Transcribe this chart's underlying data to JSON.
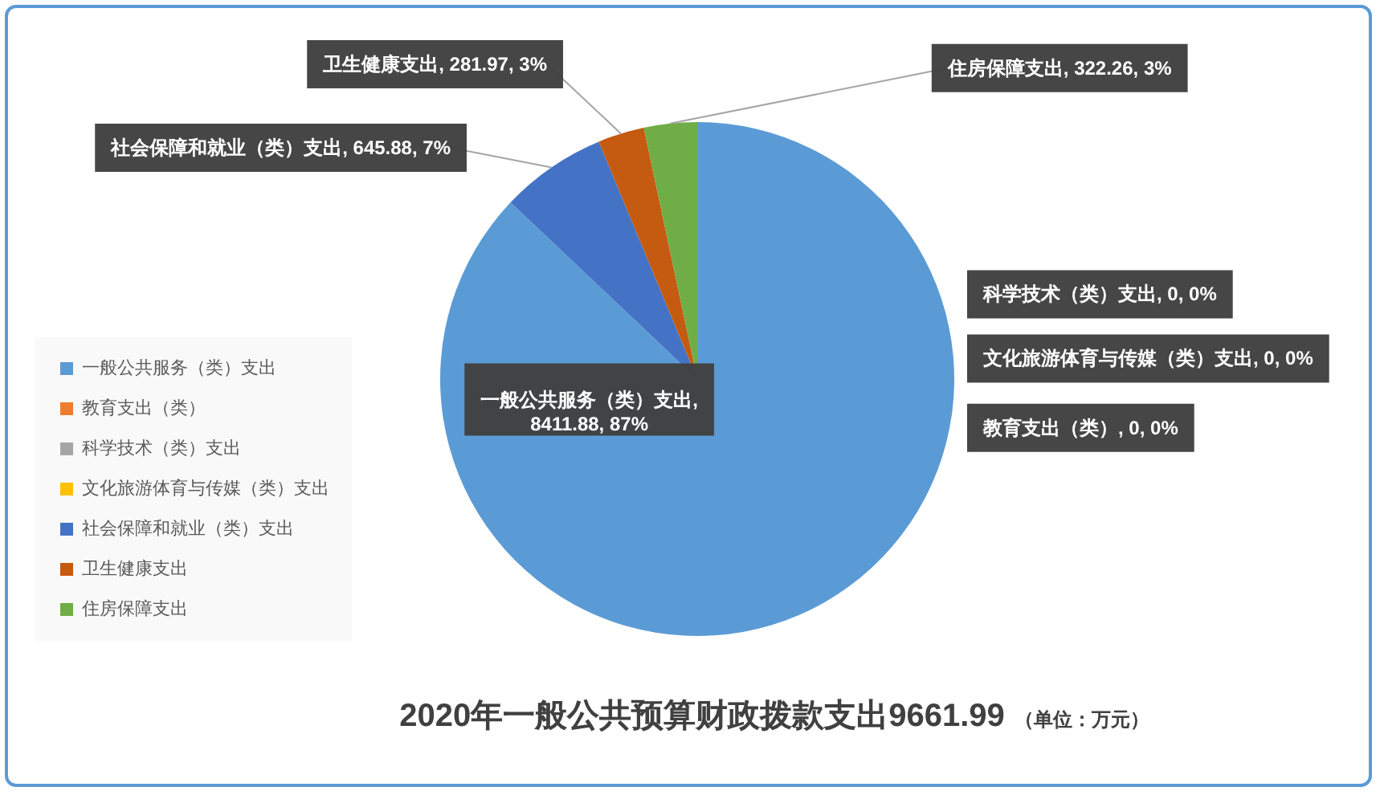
{
  "chart_data": {
    "type": "pie",
    "title": "2020年一般公共预算财政拨款支出9661.99",
    "subtitle": "（单位：万元）",
    "categories": [
      "一般公共服务（类）支出",
      "教育支出（类）",
      "科学技术（类）支出",
      "文化旅游体育与传媒（类）支出",
      "社会保障和就业（类）支出",
      "卫生健康支出",
      "住房保障支出"
    ],
    "values": [
      8411.88,
      0,
      0,
      0,
      645.88,
      281.97,
      322.26
    ],
    "colors": [
      "#5b9bd5",
      "#ed7d31",
      "#a5a5a5",
      "#ffc000",
      "#4472c4",
      "#c55a11",
      "#70ad47"
    ],
    "value_labels": [
      "一般公共服务（类）支出, 8411.88, 87%",
      "教育支出（类）, 0, 0%",
      "科学技术（类）支出, 0, 0%",
      "文化旅游体育与传媒（类）支出, 0, 0%",
      "社会保障和就业（类）支出, 645.88, 7%",
      "卫生健康支出, 281.97, 3%",
      "住房保障支出, 322.26, 3%"
    ],
    "legend": "left"
  }
}
